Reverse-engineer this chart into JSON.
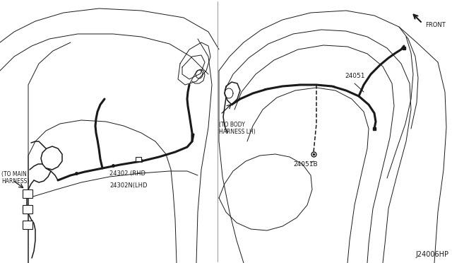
{
  "bg_color": "#ffffff",
  "line_color": "#1a1a1a",
  "fig_width": 6.4,
  "fig_height": 3.72,
  "dpi": 100,
  "diagram_code": "J24006HP",
  "left_panel": {
    "label_to_main": "(TO MAIN\nHARNESS)",
    "label_part1": "24302 (RHD",
    "label_part2": "24302N(LHD"
  },
  "right_panel": {
    "label_to_body": "(TO BODY\nHARNESS LH)",
    "label_24051": "24051",
    "label_24051B": "24051B",
    "label_front": "FRONT"
  }
}
